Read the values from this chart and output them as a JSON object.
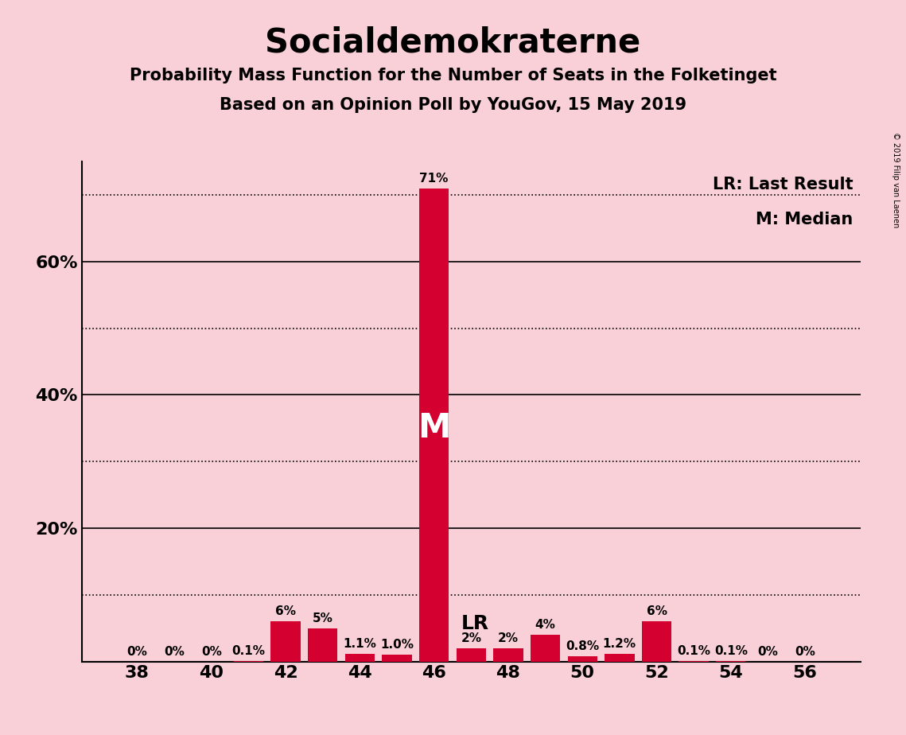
{
  "title": "Socialdemokraterne",
  "subtitle1": "Probability Mass Function for the Number of Seats in the Folketinget",
  "subtitle2": "Based on an Opinion Poll by YouGov, 15 May 2019",
  "copyright": "© 2019 Filip van Laenen",
  "seats": [
    38,
    39,
    40,
    41,
    42,
    43,
    44,
    45,
    46,
    47,
    48,
    49,
    50,
    51,
    52,
    53,
    54,
    55,
    56
  ],
  "probabilities": [
    0.0,
    0.0,
    0.0,
    0.1,
    6.0,
    5.0,
    1.1,
    1.0,
    71.0,
    2.0,
    2.0,
    4.0,
    0.8,
    1.2,
    6.0,
    0.1,
    0.1,
    0.0,
    0.0
  ],
  "labels": [
    "0%",
    "0%",
    "0%",
    "0.1%",
    "6%",
    "5%",
    "1.1%",
    "1.0%",
    "71%",
    "2%",
    "2%",
    "4%",
    "0.8%",
    "1.2%",
    "6%",
    "0.1%",
    "0.1%",
    "0%",
    "0%"
  ],
  "median_seat": 46,
  "last_result_seat": 47,
  "bar_color": "#d40030",
  "background_color": "#f9d0d8",
  "ylim_max": 75,
  "solid_lines": [
    20,
    40,
    60
  ],
  "dotted_lines": [
    10,
    30,
    50,
    70
  ],
  "ytick_positions": [
    20,
    40,
    60
  ],
  "ytick_labels": [
    "20%",
    "40%",
    "60%"
  ],
  "xtick_start": 38,
  "xtick_end": 56,
  "xtick_step": 2,
  "title_fontsize": 30,
  "subtitle_fontsize": 15,
  "tick_fontsize": 16,
  "label_fontsize": 11,
  "legend_fontsize": 15,
  "M_fontsize": 30,
  "LR_fontsize": 18
}
